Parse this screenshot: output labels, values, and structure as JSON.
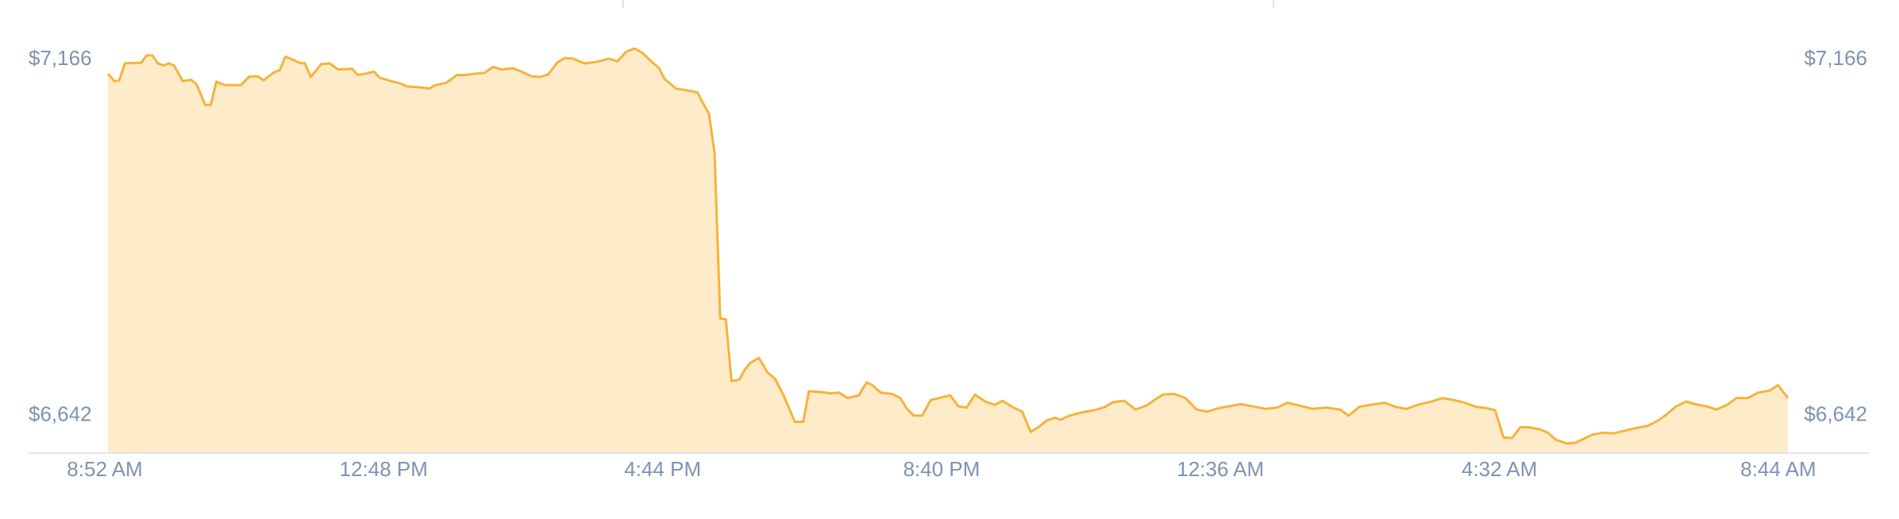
{
  "chart_data": {
    "type": "area",
    "title": "",
    "xlabel": "",
    "ylabel": "",
    "x_tick_labels": [
      "8:52 AM",
      "12:48 PM",
      "4:44 PM",
      "8:40 PM",
      "12:36 AM",
      "4:32 AM",
      "8:44 AM"
    ],
    "y_tick_labels": [
      "$7,166",
      "$6,642"
    ],
    "y_ticks": [
      7166,
      6642
    ],
    "ylim": [
      6585,
      7193
    ],
    "x_hours_span": 23.87,
    "grid": false,
    "legend": "none",
    "colors": {
      "line": "#f6b33a",
      "fill": "#feebc9",
      "axis_text": "#7f92b3",
      "axis_line": "#dfe3ea"
    },
    "series": [
      {
        "points": [
          [
            0,
            7143
          ],
          [
            0.09,
            7132
          ],
          [
            0.16,
            7133
          ],
          [
            0.24,
            7158
          ],
          [
            0.47,
            7159
          ],
          [
            0.55,
            7170
          ],
          [
            0.63,
            7170
          ],
          [
            0.71,
            7158
          ],
          [
            0.79,
            7155
          ],
          [
            0.86,
            7158
          ],
          [
            0.94,
            7155
          ],
          [
            1.06,
            7132
          ],
          [
            1.18,
            7134
          ],
          [
            1.26,
            7127
          ],
          [
            1.38,
            7097
          ],
          [
            1.46,
            7097
          ],
          [
            1.54,
            7131
          ],
          [
            1.66,
            7126
          ],
          [
            1.89,
            7126
          ],
          [
            2.01,
            7139
          ],
          [
            2.13,
            7139
          ],
          [
            2.21,
            7133
          ],
          [
            2.36,
            7145
          ],
          [
            2.44,
            7148
          ],
          [
            2.52,
            7168
          ],
          [
            2.64,
            7163
          ],
          [
            2.72,
            7159
          ],
          [
            2.8,
            7158
          ],
          [
            2.88,
            7138
          ],
          [
            3.03,
            7157
          ],
          [
            3.15,
            7158
          ],
          [
            3.27,
            7149
          ],
          [
            3.47,
            7150
          ],
          [
            3.55,
            7141
          ],
          [
            3.66,
            7143
          ],
          [
            3.78,
            7146
          ],
          [
            3.86,
            7137
          ],
          [
            4.02,
            7132
          ],
          [
            4.17,
            7128
          ],
          [
            4.25,
            7124
          ],
          [
            4.41,
            7123
          ],
          [
            4.57,
            7121
          ],
          [
            4.65,
            7126
          ],
          [
            4.8,
            7129
          ],
          [
            4.96,
            7141
          ],
          [
            5.08,
            7141
          ],
          [
            5.23,
            7143
          ],
          [
            5.35,
            7144
          ],
          [
            5.47,
            7153
          ],
          [
            5.59,
            7149
          ],
          [
            5.75,
            7151
          ],
          [
            5.9,
            7145
          ],
          [
            6.02,
            7139
          ],
          [
            6.14,
            7138
          ],
          [
            6.26,
            7142
          ],
          [
            6.38,
            7159
          ],
          [
            6.49,
            7166
          ],
          [
            6.61,
            7165
          ],
          [
            6.77,
            7158
          ],
          [
            6.93,
            7160
          ],
          [
            7.12,
            7165
          ],
          [
            7.24,
            7161
          ],
          [
            7.36,
            7175
          ],
          [
            7.48,
            7180
          ],
          [
            7.59,
            7174
          ],
          [
            7.71,
            7162
          ],
          [
            7.83,
            7151
          ],
          [
            7.91,
            7135
          ],
          [
            8.07,
            7121
          ],
          [
            8.19,
            7119
          ],
          [
            8.3,
            7117
          ],
          [
            8.38,
            7115
          ],
          [
            8.42,
            7106
          ],
          [
            8.54,
            7084
          ],
          [
            8.62,
            7026
          ],
          [
            8.7,
            6782
          ],
          [
            8.78,
            6781
          ],
          [
            8.86,
            6690
          ],
          [
            8.97,
            6692
          ],
          [
            9.05,
            6707
          ],
          [
            9.13,
            6717
          ],
          [
            9.25,
            6724
          ],
          [
            9.37,
            6703
          ],
          [
            9.48,
            6693
          ],
          [
            9.6,
            6669
          ],
          [
            9.76,
            6630
          ],
          [
            9.88,
            6630
          ],
          [
            9.96,
            6675
          ],
          [
            10.11,
            6674
          ],
          [
            10.27,
            6672
          ],
          [
            10.39,
            6673
          ],
          [
            10.51,
            6665
          ],
          [
            10.67,
            6669
          ],
          [
            10.78,
            6688
          ],
          [
            10.86,
            6684
          ],
          [
            10.98,
            6673
          ],
          [
            11.14,
            6671
          ],
          [
            11.26,
            6665
          ],
          [
            11.34,
            6651
          ],
          [
            11.45,
            6639
          ],
          [
            11.57,
            6639
          ],
          [
            11.69,
            6662
          ],
          [
            11.85,
            6666
          ],
          [
            11.97,
            6669
          ],
          [
            12.08,
            6653
          ],
          [
            12.2,
            6651
          ],
          [
            12.32,
            6670
          ],
          [
            12.48,
            6659
          ],
          [
            12.6,
            6655
          ],
          [
            12.71,
            6661
          ],
          [
            12.83,
            6653
          ],
          [
            12.99,
            6645
          ],
          [
            13.11,
            6615
          ],
          [
            13.22,
            6622
          ],
          [
            13.34,
            6632
          ],
          [
            13.46,
            6636
          ],
          [
            13.54,
            6633
          ],
          [
            13.66,
            6639
          ],
          [
            13.85,
            6644
          ],
          [
            14.05,
            6648
          ],
          [
            14.17,
            6652
          ],
          [
            14.28,
            6659
          ],
          [
            14.44,
            6661
          ],
          [
            14.6,
            6648
          ],
          [
            14.76,
            6654
          ],
          [
            14.88,
            6663
          ],
          [
            14.99,
            6670
          ],
          [
            15.15,
            6671
          ],
          [
            15.31,
            6665
          ],
          [
            15.47,
            6648
          ],
          [
            15.62,
            6645
          ],
          [
            15.78,
            6650
          ],
          [
            15.94,
            6653
          ],
          [
            16.1,
            6656
          ],
          [
            16.25,
            6653
          ],
          [
            16.45,
            6649
          ],
          [
            16.61,
            6651
          ],
          [
            16.76,
            6658
          ],
          [
            16.96,
            6653
          ],
          [
            17.12,
            6649
          ],
          [
            17.31,
            6651
          ],
          [
            17.51,
            6648
          ],
          [
            17.63,
            6639
          ],
          [
            17.78,
            6652
          ],
          [
            17.94,
            6655
          ],
          [
            18.14,
            6658
          ],
          [
            18.3,
            6652
          ],
          [
            18.45,
            6649
          ],
          [
            18.61,
            6655
          ],
          [
            18.81,
            6660
          ],
          [
            18.97,
            6665
          ],
          [
            19.12,
            6662
          ],
          [
            19.28,
            6658
          ],
          [
            19.44,
            6652
          ],
          [
            19.6,
            6650
          ],
          [
            19.71,
            6647
          ],
          [
            19.83,
            6607
          ],
          [
            19.95,
            6606
          ],
          [
            20.07,
            6622
          ],
          [
            20.18,
            6622
          ],
          [
            20.34,
            6619
          ],
          [
            20.46,
            6614
          ],
          [
            20.58,
            6603
          ],
          [
            20.74,
            6598
          ],
          [
            20.85,
            6599
          ],
          [
            20.97,
            6605
          ],
          [
            21.09,
            6611
          ],
          [
            21.25,
            6614
          ],
          [
            21.4,
            6613
          ],
          [
            21.56,
            6617
          ],
          [
            21.72,
            6621
          ],
          [
            21.88,
            6624
          ],
          [
            22.03,
            6632
          ],
          [
            22.15,
            6641
          ],
          [
            22.27,
            6652
          ],
          [
            22.43,
            6660
          ],
          [
            22.55,
            6656
          ],
          [
            22.7,
            6653
          ],
          [
            22.86,
            6648
          ],
          [
            23.02,
            6656
          ],
          [
            23.14,
            6665
          ],
          [
            23.3,
            6665
          ],
          [
            23.45,
            6673
          ],
          [
            23.61,
            6676
          ],
          [
            23.73,
            6684
          ],
          [
            23.87,
            6665
          ]
        ]
      }
    ]
  }
}
